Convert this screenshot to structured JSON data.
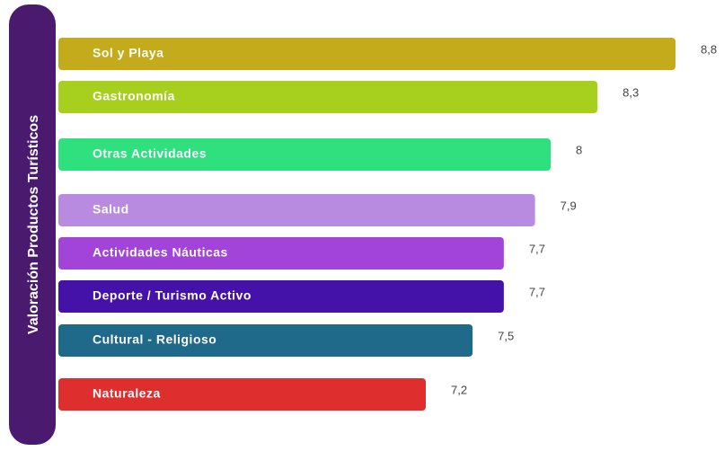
{
  "chart_data": {
    "type": "bar",
    "orientation": "horizontal",
    "title": "Valoración Productos Turísticos",
    "categories": [
      "Sol y Playa",
      "Gastronomía",
      "Otras Actividades",
      "Salud",
      "Actividades Náuticas",
      "Deporte / Turismo Activo",
      "Cultural - Religioso",
      "Naturaleza"
    ],
    "values": [
      8.8,
      8.3,
      8,
      7.9,
      7.7,
      7.7,
      7.5,
      7.2
    ],
    "value_labels": [
      "8,8",
      "8,3",
      "8",
      "7,9",
      "7,7",
      "7,7",
      "7,5",
      "7,2"
    ],
    "colors": [
      "#c4ab1c",
      "#a6cf1e",
      "#2fe07e",
      "#b98be0",
      "#a244d8",
      "#4412a8",
      "#1f6a8a",
      "#de2e2e"
    ]
  }
}
